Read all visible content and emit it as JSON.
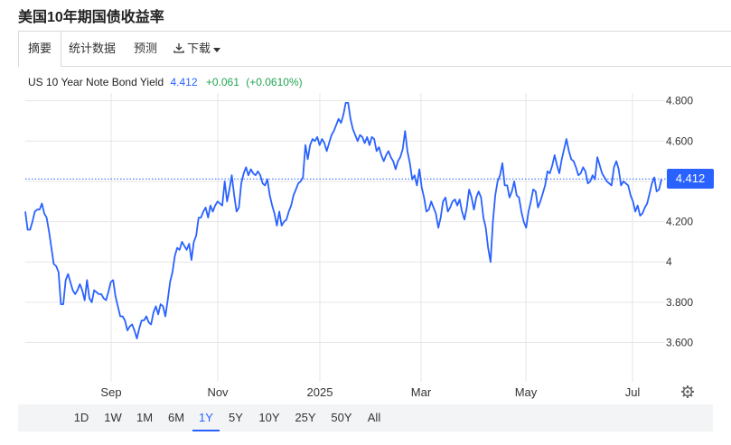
{
  "title": "美国10年期国债收益率",
  "tabs": [
    {
      "label": "摘要",
      "active": true
    },
    {
      "label": "统计数据",
      "active": false
    },
    {
      "label": "预测",
      "active": false
    },
    {
      "label": "下载",
      "active": false
    }
  ],
  "legend": {
    "series_name": "US 10 Year Note Bond Yield",
    "value": "4.412",
    "change": "+0.061",
    "change_pct": "(+0.0610%)"
  },
  "current_value_label": "4.412",
  "range_buttons": [
    {
      "label": "1D",
      "active": false
    },
    {
      "label": "1W",
      "active": false
    },
    {
      "label": "1M",
      "active": false
    },
    {
      "label": "6M",
      "active": false
    },
    {
      "label": "1Y",
      "active": true
    },
    {
      "label": "5Y",
      "active": false
    },
    {
      "label": "10Y",
      "active": false
    },
    {
      "label": "25Y",
      "active": false
    },
    {
      "label": "50Y",
      "active": false
    },
    {
      "label": "All",
      "active": false
    }
  ],
  "colors": {
    "line": "#2962ff",
    "up": "#22a352",
    "grid": "#e6e6e6"
  },
  "icons": {
    "download": "download-icon",
    "caret": "caret-down-icon",
    "settings": "gear-icon"
  },
  "chart_data": {
    "type": "line",
    "title": "",
    "xlabel": "",
    "ylabel": "",
    "ylim": [
      3.45,
      4.87
    ],
    "y_ticks": [
      3.6,
      3.8,
      4.0,
      4.2,
      4.4,
      4.6,
      4.8
    ],
    "y_tick_labels": [
      "3.600",
      "3.800",
      "4",
      "4.200",
      "",
      "4.600",
      "4.800"
    ],
    "x_tick_labels": [
      "Sep",
      "Nov",
      "2025",
      "Mar",
      "May",
      "Jul"
    ],
    "current_value": 4.412,
    "series": [
      {
        "values": [
          4.25,
          4.16,
          4.16,
          4.2,
          4.25,
          4.26,
          4.26,
          4.29,
          4.24,
          4.22,
          4.15,
          4.07,
          3.99,
          3.98,
          3.95,
          3.79,
          3.79,
          3.91,
          3.94,
          3.9,
          3.86,
          3.84,
          3.86,
          3.89,
          3.86,
          3.81,
          3.91,
          3.82,
          3.8,
          3.86,
          3.85,
          3.84,
          3.84,
          3.82,
          3.81,
          3.85,
          3.9,
          3.91,
          3.83,
          3.78,
          3.73,
          3.73,
          3.71,
          3.66,
          3.68,
          3.69,
          3.66,
          3.62,
          3.67,
          3.71,
          3.71,
          3.73,
          3.7,
          3.69,
          3.75,
          3.78,
          3.74,
          3.79,
          3.78,
          3.73,
          3.81,
          3.9,
          3.95,
          4.03,
          4.07,
          4.06,
          4.1,
          4.08,
          4.06,
          4.09,
          4.01,
          4.1,
          4.13,
          4.22,
          4.22,
          4.25,
          4.27,
          4.22,
          4.28,
          4.25,
          4.28,
          4.3,
          4.29,
          4.28,
          4.4,
          4.3,
          4.36,
          4.43,
          4.33,
          4.25,
          4.27,
          4.39,
          4.44,
          4.47,
          4.43,
          4.46,
          4.44,
          4.43,
          4.45,
          4.43,
          4.39,
          4.38,
          4.41,
          4.33,
          4.28,
          4.24,
          4.18,
          4.25,
          4.18,
          4.2,
          4.21,
          4.25,
          4.28,
          4.33,
          4.36,
          4.39,
          4.4,
          4.42,
          4.58,
          4.51,
          4.58,
          4.61,
          4.6,
          4.62,
          4.58,
          4.61,
          4.59,
          4.55,
          4.59,
          4.63,
          4.65,
          4.68,
          4.71,
          4.69,
          4.73,
          4.79,
          4.79,
          4.71,
          4.66,
          4.63,
          4.6,
          4.63,
          4.62,
          4.59,
          4.62,
          4.58,
          4.62,
          4.61,
          4.55,
          4.57,
          4.53,
          4.5,
          4.53,
          4.55,
          4.52,
          4.5,
          4.46,
          4.5,
          4.52,
          4.56,
          4.65,
          4.55,
          4.49,
          4.41,
          4.43,
          4.38,
          4.46,
          4.37,
          4.32,
          4.25,
          4.26,
          4.3,
          4.27,
          4.24,
          4.17,
          4.22,
          4.3,
          4.32,
          4.25,
          4.27,
          4.3,
          4.31,
          4.28,
          4.31,
          4.25,
          4.21,
          4.27,
          4.36,
          4.32,
          4.26,
          4.32,
          4.35,
          4.32,
          4.22,
          4.17,
          4.07,
          4.0,
          4.2,
          4.33,
          4.4,
          4.43,
          4.49,
          4.38,
          4.38,
          4.32,
          4.35,
          4.4,
          4.33,
          4.32,
          4.25,
          4.2,
          4.17,
          4.25,
          4.3,
          4.36,
          4.35,
          4.27,
          4.3,
          4.34,
          4.38,
          4.45,
          4.44,
          4.48,
          4.53,
          4.48,
          4.44,
          4.51,
          4.56,
          4.61,
          4.55,
          4.51,
          4.5,
          4.47,
          4.43,
          4.44,
          4.47,
          4.45,
          4.39,
          4.4,
          4.43,
          4.41,
          4.52,
          4.48,
          4.44,
          4.42,
          4.4,
          4.39,
          4.38,
          4.47,
          4.5,
          4.46,
          4.38,
          4.4,
          4.39,
          4.38,
          4.33,
          4.3,
          4.25,
          4.28,
          4.23,
          4.24,
          4.27,
          4.29,
          4.34,
          4.39,
          4.42,
          4.35,
          4.36,
          4.41
        ]
      }
    ]
  }
}
